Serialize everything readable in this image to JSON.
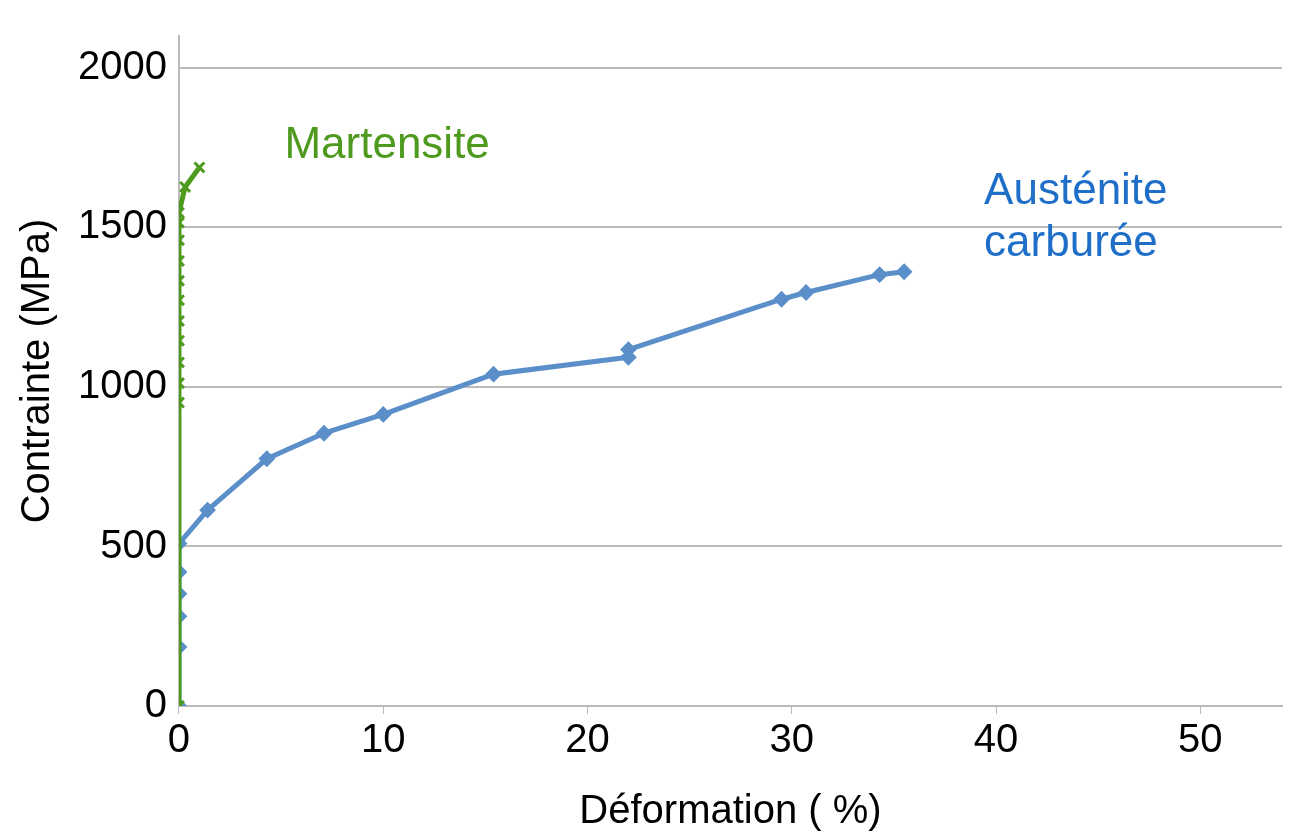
{
  "chart_data": {
    "type": "line",
    "xlabel": "Déformation ( %)",
    "ylabel": "Contrainte (MPa)",
    "series": [
      {
        "name": "Martensite",
        "color": "#4e9a1e",
        "marker": "cross",
        "x": [
          0,
          0,
          0,
          0,
          0,
          0,
          0,
          0,
          0,
          0,
          0,
          0,
          0.3,
          1.0
        ],
        "values": [
          0,
          951,
          1012,
          1077,
          1145,
          1207,
          1272,
          1333,
          1395,
          1460,
          1515,
          1546,
          1627,
          1688
        ]
      },
      {
        "name": "Austénite carburée",
        "color": "#5b8fc9",
        "marker": "diamond",
        "x": [
          0,
          0,
          0,
          0,
          0,
          0,
          1.4,
          4.3,
          7.1,
          10.0,
          15.4,
          22.0,
          22.0,
          29.5,
          30.7,
          34.3,
          35.5
        ],
        "values": [
          0,
          185,
          281,
          352,
          420,
          509,
          614,
          775,
          855,
          914,
          1040,
          1093,
          1117,
          1275,
          1296,
          1352,
          1361
        ]
      }
    ],
    "xlim": [
      0,
      54
    ],
    "xticks": [
      0,
      10,
      20,
      30,
      40,
      50
    ],
    "ylim": [
      0,
      2100
    ],
    "yticks": [
      0,
      500,
      1000,
      1500,
      2000
    ],
    "grid": "y",
    "legend": false,
    "line_style": "solid"
  }
}
